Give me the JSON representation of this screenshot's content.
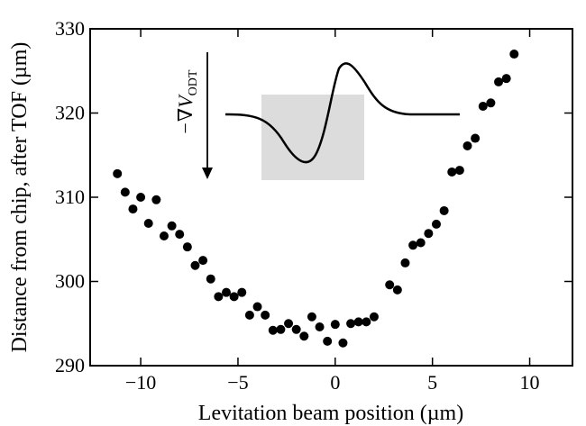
{
  "chart_data": {
    "type": "scatter",
    "xlabel": "Levitation beam position (µm)",
    "ylabel": "Distance from chip, after TOF (µm)",
    "xlim": [
      -12.6,
      12.2
    ],
    "ylim": [
      290,
      330
    ],
    "xticks": [
      -10,
      -5,
      0,
      5,
      10
    ],
    "yticks": [
      290,
      300,
      310,
      320,
      330
    ],
    "xtick_labels": [
      "−10",
      "−5",
      "0",
      "5",
      "10"
    ],
    "ytick_labels": [
      "290",
      "300",
      "310",
      "320",
      "330"
    ],
    "grid": false,
    "marker_color": "#000000",
    "points": [
      {
        "x": -11.2,
        "y": 312.8
      },
      {
        "x": -10.8,
        "y": 310.6
      },
      {
        "x": -10.4,
        "y": 308.6
      },
      {
        "x": -10.0,
        "y": 310.0
      },
      {
        "x": -9.6,
        "y": 306.9
      },
      {
        "x": -9.2,
        "y": 309.7
      },
      {
        "x": -8.8,
        "y": 305.4
      },
      {
        "x": -8.4,
        "y": 306.6
      },
      {
        "x": -8.0,
        "y": 305.6
      },
      {
        "x": -7.6,
        "y": 304.1
      },
      {
        "x": -7.2,
        "y": 301.9
      },
      {
        "x": -6.8,
        "y": 302.5
      },
      {
        "x": -6.4,
        "y": 300.3
      },
      {
        "x": -6.0,
        "y": 298.2
      },
      {
        "x": -5.6,
        "y": 298.7
      },
      {
        "x": -5.2,
        "y": 298.2
      },
      {
        "x": -4.8,
        "y": 298.7
      },
      {
        "x": -4.4,
        "y": 296.0
      },
      {
        "x": -4.0,
        "y": 297.0
      },
      {
        "x": -3.6,
        "y": 296.0
      },
      {
        "x": -3.2,
        "y": 294.2
      },
      {
        "x": -2.8,
        "y": 294.3
      },
      {
        "x": -2.4,
        "y": 295.0
      },
      {
        "x": -2.0,
        "y": 294.3
      },
      {
        "x": -1.6,
        "y": 293.5
      },
      {
        "x": -1.2,
        "y": 295.8
      },
      {
        "x": -0.8,
        "y": 294.6
      },
      {
        "x": -0.4,
        "y": 292.9
      },
      {
        "x": 0.0,
        "y": 294.9
      },
      {
        "x": 0.4,
        "y": 292.7
      },
      {
        "x": 0.8,
        "y": 295.0
      },
      {
        "x": 1.2,
        "y": 295.2
      },
      {
        "x": 1.6,
        "y": 295.2
      },
      {
        "x": 2.0,
        "y": 295.8
      },
      {
        "x": 2.8,
        "y": 299.6
      },
      {
        "x": 3.2,
        "y": 299.0
      },
      {
        "x": 3.6,
        "y": 302.2
      },
      {
        "x": 4.0,
        "y": 304.3
      },
      {
        "x": 4.4,
        "y": 304.6
      },
      {
        "x": 4.8,
        "y": 305.7
      },
      {
        "x": 5.2,
        "y": 306.8
      },
      {
        "x": 5.6,
        "y": 308.4
      },
      {
        "x": 6.0,
        "y": 313.0
      },
      {
        "x": 6.4,
        "y": 313.2
      },
      {
        "x": 6.8,
        "y": 316.1
      },
      {
        "x": 7.2,
        "y": 317.0
      },
      {
        "x": 7.6,
        "y": 320.8
      },
      {
        "x": 8.0,
        "y": 321.2
      },
      {
        "x": 8.4,
        "y": 323.7
      },
      {
        "x": 8.8,
        "y": 324.1
      },
      {
        "x": 9.2,
        "y": 327.0
      }
    ],
    "inset": {
      "label_main": "−∇V",
      "label_sub": "ODT",
      "highlight_color": "#dcdcdc"
    }
  }
}
